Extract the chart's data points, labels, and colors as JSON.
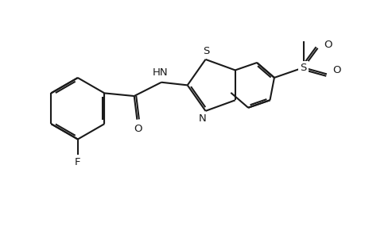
{
  "background_color": "#ffffff",
  "line_color": "#1a1a1a",
  "line_width": 1.5,
  "dbo": 0.055,
  "fig_width": 4.6,
  "fig_height": 3.0,
  "dpi": 100,
  "xlim": [
    0,
    10
  ],
  "ylim": [
    0,
    6.52
  ]
}
